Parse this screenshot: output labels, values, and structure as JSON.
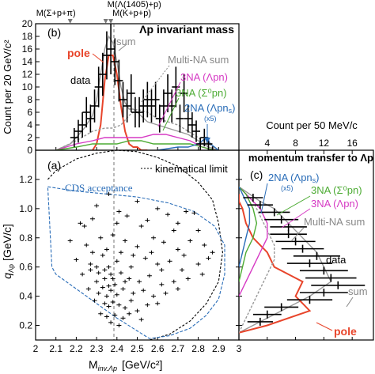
{
  "chart_data": [
    {
      "panel_label": "(b)",
      "type": "line",
      "title": "Λp invariant mass",
      "ylabel": "Count per 20 GeV/c²",
      "ylim": [
        0,
        20
      ],
      "yticks": [
        "0",
        "2",
        "4",
        "6",
        "8",
        "10",
        "12",
        "14",
        "16",
        "18",
        "20"
      ],
      "xlim": [
        2.0,
        3.0
      ],
      "markers": [
        {
          "label": "M(Σ+p+π)",
          "x": 2.17
        },
        {
          "label": "M(Λ(1405)+p)",
          "x": 2.345
        },
        {
          "label": "M(K+p+p)",
          "x": 2.37
        }
      ],
      "series": [
        {
          "name": "data",
          "type": "errorbar",
          "color": "#000000",
          "x": [
            2.19,
            2.21,
            2.23,
            2.25,
            2.27,
            2.29,
            2.31,
            2.33,
            2.35,
            2.37,
            2.39,
            2.41,
            2.43,
            2.45,
            2.47,
            2.49,
            2.51,
            2.53,
            2.55,
            2.57,
            2.59,
            2.61,
            2.63,
            2.65,
            2.67,
            2.69,
            2.71,
            2.73,
            2.75,
            2.77,
            2.79,
            2.81,
            2.83,
            2.85,
            2.87
          ],
          "y": [
            2,
            3,
            4,
            6,
            5,
            7,
            10,
            12,
            15,
            16,
            14,
            11,
            8,
            7,
            9,
            6,
            6,
            7,
            8,
            7,
            8,
            5,
            7,
            9,
            7,
            10,
            5,
            9,
            5,
            4,
            3,
            1,
            2,
            1,
            0
          ],
          "err": [
            1.5,
            1.8,
            2,
            2.4,
            2.2,
            2.6,
            3.2,
            3.4,
            3.8,
            4,
            3.7,
            3.3,
            2.8,
            2.6,
            3,
            2.4,
            2.4,
            2.6,
            2.8,
            2.6,
            2.8,
            2.2,
            2.6,
            3,
            2.6,
            3.2,
            2.2,
            3,
            2.2,
            2,
            1.7,
            1,
            1.4,
            1,
            0.6
          ]
        },
        {
          "name": "sum",
          "color": "#999999",
          "x": [
            2.1,
            2.17,
            2.2,
            2.24,
            2.28,
            2.3,
            2.32,
            2.34,
            2.36,
            2.38,
            2.4,
            2.42,
            2.44,
            2.46,
            2.48,
            2.5,
            2.55,
            2.6,
            2.65,
            2.7,
            2.75,
            2.8,
            2.85,
            2.9
          ],
          "y": [
            0,
            1,
            2,
            3.5,
            5.5,
            8,
            12,
            16,
            18,
            17,
            14,
            10,
            7.5,
            6.5,
            6.5,
            6,
            4.5,
            4,
            3.5,
            3,
            2.5,
            1.5,
            0.5,
            0
          ]
        },
        {
          "name": "pole",
          "color": "#e8452b",
          "x": [
            2.28,
            2.3,
            2.32,
            2.34,
            2.36,
            2.38,
            2.4,
            2.42,
            2.44,
            2.46,
            2.48,
            2.5,
            2.52,
            2.55
          ],
          "y": [
            0,
            1,
            4,
            11,
            15,
            15,
            12,
            7,
            3,
            1,
            0.5,
            0.5,
            0,
            0
          ]
        },
        {
          "name": "Multi-NA sum",
          "color": "#999999",
          "dash": "3,2",
          "x": [
            2.1,
            2.2,
            2.28,
            2.34,
            2.38,
            2.42,
            2.46,
            2.5,
            2.55,
            2.6,
            2.65,
            2.7,
            2.75,
            2.8,
            2.85,
            2.9
          ],
          "y": [
            0,
            1.5,
            3,
            3.5,
            3.5,
            4,
            5.5,
            6.5,
            6,
            5,
            4.5,
            4,
            3,
            2,
            1,
            0
          ]
        },
        {
          "name": "3NA (Λpn)",
          "color": "#d63ac4",
          "x": [
            2.1,
            2.2,
            2.28,
            2.34,
            2.4,
            2.46,
            2.52,
            2.58,
            2.64,
            2.7,
            2.76,
            2.82,
            2.88
          ],
          "y": [
            0,
            1,
            1.5,
            2,
            2,
            2,
            2,
            2.5,
            2.5,
            2,
            1.5,
            0.5,
            0
          ]
        },
        {
          "name": "3NA (Σ⁰pn)",
          "color": "#4cab33",
          "x": [
            2.1,
            2.2,
            2.28,
            2.34,
            2.4,
            2.46,
            2.52,
            2.58,
            2.64,
            2.7,
            2.76,
            2.82,
            2.88
          ],
          "y": [
            0,
            0.5,
            1,
            1,
            1,
            1.5,
            1.5,
            1,
            1,
            1,
            1,
            0.5,
            0
          ]
        },
        {
          "name": "2NA (Λpnₛ) (x5)",
          "color": "#2a6db8",
          "x": [
            2.6,
            2.7,
            2.75,
            2.8,
            2.84,
            2.86,
            2.88,
            2.9
          ],
          "y": [
            0,
            0.5,
            0.5,
            1,
            2,
            1,
            0.5,
            0
          ]
        }
      ]
    },
    {
      "panel_label": "(a)",
      "type": "scatter",
      "xlabel": "M",
      "xlabel_sub": "inv.Λp",
      "xlabel_unit": "[GeV/c²]",
      "ylabel": "q",
      "ylabel_sub": "Λp",
      "ylabel_unit": "[GeV/c]",
      "xlim": [
        2.0,
        3.0
      ],
      "ylim": [
        0.1,
        1.4
      ],
      "xticks": [
        "2",
        "2.1",
        "2.2",
        "2.3",
        "2.4",
        "2.5",
        "2.6",
        "2.7",
        "2.8",
        "2.9",
        "3"
      ],
      "yticks": [
        "0.2",
        "0.4",
        "0.6",
        "0.8",
        "1.0",
        "1.2"
      ],
      "annotations": [
        "kinematical limit",
        "CDS acceptance"
      ],
      "points": [
        [
          2.3,
          1.02
        ],
        [
          2.36,
          1.1
        ],
        [
          2.41,
          0.98
        ],
        [
          2.45,
          0.95
        ],
        [
          2.5,
          1.05
        ],
        [
          2.22,
          0.9
        ],
        [
          2.28,
          0.93
        ],
        [
          2.55,
          0.92
        ],
        [
          2.6,
          1.0
        ],
        [
          2.65,
          0.96
        ],
        [
          2.7,
          0.9
        ],
        [
          2.74,
          0.98
        ],
        [
          2.78,
          0.97
        ],
        [
          2.17,
          0.78
        ],
        [
          2.25,
          0.75
        ],
        [
          2.32,
          0.8
        ],
        [
          2.38,
          0.82
        ],
        [
          2.44,
          0.78
        ],
        [
          2.5,
          0.74
        ],
        [
          2.58,
          0.8
        ],
        [
          2.63,
          0.77
        ],
        [
          2.7,
          0.72
        ],
        [
          2.76,
          0.78
        ],
        [
          2.83,
          0.75
        ],
        [
          2.2,
          0.65
        ],
        [
          2.27,
          0.62
        ],
        [
          2.33,
          0.68
        ],
        [
          2.36,
          0.6
        ],
        [
          2.4,
          0.64
        ],
        [
          2.47,
          0.6
        ],
        [
          2.54,
          0.66
        ],
        [
          2.6,
          0.62
        ],
        [
          2.66,
          0.64
        ],
        [
          2.72,
          0.58
        ],
        [
          2.8,
          0.62
        ],
        [
          2.85,
          0.66
        ],
        [
          2.23,
          0.55
        ],
        [
          2.3,
          0.5
        ],
        [
          2.34,
          0.52
        ],
        [
          2.37,
          0.55
        ],
        [
          2.39,
          0.48
        ],
        [
          2.42,
          0.56
        ],
        [
          2.46,
          0.52
        ],
        [
          2.51,
          0.5
        ],
        [
          2.56,
          0.54
        ],
        [
          2.62,
          0.48
        ],
        [
          2.68,
          0.5
        ],
        [
          2.75,
          0.52
        ],
        [
          2.82,
          0.55
        ],
        [
          2.26,
          0.45
        ],
        [
          2.31,
          0.42
        ],
        [
          2.33,
          0.46
        ],
        [
          2.35,
          0.4
        ],
        [
          2.37,
          0.44
        ],
        [
          2.4,
          0.41
        ],
        [
          2.43,
          0.45
        ],
        [
          2.48,
          0.42
        ],
        [
          2.53,
          0.44
        ],
        [
          2.58,
          0.4
        ],
        [
          2.64,
          0.42
        ],
        [
          2.7,
          0.45
        ],
        [
          2.29,
          0.37
        ],
        [
          2.34,
          0.35
        ],
        [
          2.36,
          0.33
        ],
        [
          2.38,
          0.36
        ],
        [
          2.41,
          0.34
        ],
        [
          2.44,
          0.32
        ],
        [
          2.47,
          0.37
        ],
        [
          2.5,
          0.3
        ],
        [
          2.55,
          0.34
        ],
        [
          2.6,
          0.35
        ],
        [
          2.32,
          0.28
        ],
        [
          2.35,
          0.26
        ],
        [
          2.39,
          0.27
        ],
        [
          2.43,
          0.25
        ],
        [
          2.46,
          0.28
        ],
        [
          2.52,
          0.24
        ],
        [
          2.37,
          0.22
        ],
        [
          2.41,
          0.2
        ],
        [
          2.3,
          0.6
        ],
        [
          2.28,
          0.7
        ],
        [
          2.35,
          0.72
        ],
        [
          2.42,
          0.7
        ],
        [
          2.48,
          0.68
        ],
        [
          2.57,
          0.7
        ],
        [
          2.73,
          0.68
        ],
        [
          2.8,
          0.85
        ],
        [
          2.87,
          0.7
        ],
        [
          2.24,
          0.88
        ],
        [
          2.4,
          0.9
        ],
        [
          2.52,
          0.88
        ],
        [
          2.68,
          0.85
        ],
        [
          2.34,
          0.58
        ],
        [
          2.38,
          0.52
        ],
        [
          2.44,
          0.5
        ],
        [
          2.31,
          0.56
        ],
        [
          2.36,
          0.47
        ],
        [
          2.27,
          0.58
        ],
        [
          2.62,
          0.58
        ]
      ],
      "kinematical_limit": {
        "x": [
          2.06,
          2.1,
          2.2,
          2.3,
          2.4,
          2.5,
          2.6,
          2.7,
          2.8,
          2.87,
          2.9,
          2.92,
          2.9,
          2.84,
          2.76,
          2.66,
          2.56
        ],
        "y": [
          1.2,
          1.26,
          1.34,
          1.38,
          1.4,
          1.39,
          1.35,
          1.29,
          1.18,
          1.06,
          0.9,
          0.7,
          0.5,
          0.35,
          0.23,
          0.14,
          0.1
        ]
      },
      "cds_acceptance": {
        "x": [
          2.06,
          2.2,
          2.35,
          2.5,
          2.65,
          2.78,
          2.88,
          2.93,
          2.93,
          2.9,
          2.84,
          2.76,
          2.66,
          2.56,
          2.4,
          2.25,
          2.1,
          2.08,
          2.06
        ],
        "y": [
          1.15,
          1.12,
          1.1,
          1.08,
          1.04,
          0.98,
          0.88,
          0.75,
          0.55,
          0.38,
          0.27,
          0.18,
          0.13,
          0.11,
          0.25,
          0.4,
          0.55,
          0.6,
          1.15
        ]
      }
    },
    {
      "panel_label": "(c)",
      "type": "line",
      "orientation": "horizontal",
      "title": "momentum transfer to Λp",
      "xlabel_top": "Count per 50 MeV/c",
      "xticks": [
        "4",
        "8",
        "12",
        "16"
      ],
      "xlim": [
        0,
        19
      ],
      "ylim": [
        0.1,
        1.4
      ],
      "series": [
        {
          "name": "data",
          "type": "errorbar",
          "color": "#000000",
          "q": [
            0.225,
            0.275,
            0.325,
            0.375,
            0.425,
            0.475,
            0.525,
            0.575,
            0.625,
            0.675,
            0.725,
            0.775,
            0.825,
            0.875,
            0.925,
            0.975,
            1.025,
            1.075
          ],
          "count": [
            3,
            4,
            6,
            10,
            12,
            14,
            13,
            12,
            10,
            11,
            9,
            8,
            7,
            7,
            6,
            5,
            3,
            2
          ],
          "err": [
            1.8,
            2,
            2.4,
            3.2,
            3.4,
            3.8,
            3.6,
            3.4,
            3.2,
            3.3,
            3,
            2.8,
            2.6,
            2.6,
            2.4,
            2.2,
            1.8,
            1.4
          ]
        },
        {
          "name": "sum",
          "color": "#999999",
          "q": [
            0.15,
            0.2,
            0.3,
            0.4,
            0.5,
            0.6,
            0.7,
            0.8,
            0.9,
            1.0,
            1.05,
            1.1,
            1.15
          ],
          "count": [
            0,
            2,
            6,
            10,
            13,
            12,
            11,
            9,
            7,
            5,
            3,
            1.5,
            0
          ]
        },
        {
          "name": "pole",
          "color": "#e8452b",
          "q": [
            0.15,
            0.2,
            0.3,
            0.4,
            0.5,
            0.6,
            0.7,
            0.8,
            0.9,
            1.0,
            1.05,
            1.1
          ],
          "count": [
            0,
            4,
            10,
            8,
            9,
            5,
            4,
            2,
            1,
            0.5,
            0,
            0
          ]
        },
        {
          "name": "Multi-NA sum",
          "color": "#999999",
          "dash": "3,2",
          "q": [
            0.15,
            0.25,
            0.35,
            0.45,
            0.55,
            0.65,
            0.75,
            0.85,
            0.95,
            1.05,
            1.15
          ],
          "count": [
            0,
            1,
            2,
            3,
            4,
            5,
            5,
            4,
            3,
            2,
            0
          ]
        },
        {
          "name": "3NA (Λpn)",
          "color": "#d63ac4",
          "q": [
            0.4,
            0.5,
            0.6,
            0.7,
            0.8,
            0.9,
            1.0,
            1.05,
            1.1,
            1.15
          ],
          "count": [
            0,
            1,
            2,
            3,
            4,
            4,
            3,
            2,
            1,
            0
          ]
        },
        {
          "name": "3NA (Σ⁰pn)",
          "color": "#4cab33",
          "q": [
            0.5,
            0.6,
            0.7,
            0.8,
            0.9,
            1.0,
            1.05,
            1.1,
            1.15
          ],
          "count": [
            0,
            0.5,
            1,
            2,
            2.5,
            2,
            1.5,
            1,
            0
          ]
        },
        {
          "name": "2NA (Λpnₛ) (x5)",
          "color": "#2a6db8",
          "q": [
            0.6,
            0.7,
            0.8,
            0.9,
            1.0,
            1.05,
            1.1,
            1.15
          ],
          "count": [
            0,
            0.5,
            1,
            1.5,
            1.5,
            1,
            0.5,
            0
          ]
        }
      ]
    }
  ]
}
